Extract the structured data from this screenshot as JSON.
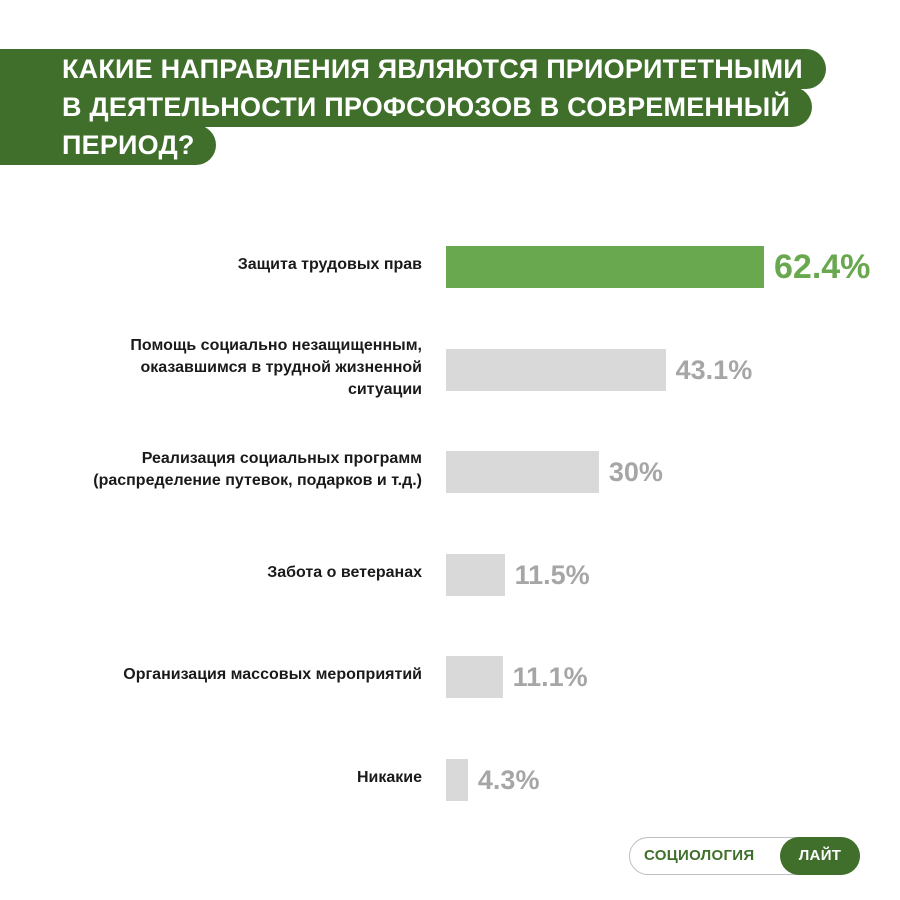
{
  "title": {
    "lines": [
      "КАКИЕ НАПРАВЛЕНИЯ ЯВЛЯЮТСЯ ПРИОРИТЕТНЫМИ",
      "В ДЕЯТЕЛЬНОСТИ ПРОФСОЮЗОВ В СОВРЕМЕННЫЙ",
      "ПЕРИОД?"
    ]
  },
  "chart_data": {
    "type": "bar",
    "orientation": "horizontal",
    "categories": [
      "Защита трудовых прав",
      "Помощь социально незащищенным, оказавшимся в трудной жизненной ситуации",
      "Реализация социальных программ (распределение путевок, подарков и т.д.)",
      "Забота о ветеранах",
      "Организация массовых мероприятий",
      "Никакие"
    ],
    "values": [
      62.4,
      43.1,
      30,
      11.5,
      11.1,
      4.3
    ],
    "value_labels": [
      "62.4%",
      "43.1%",
      "30%",
      "11.5%",
      "11.1%",
      "4.3%"
    ],
    "highlight_index": 0,
    "colors": {
      "highlight": "#6aa84f",
      "default": "#d9d9d9",
      "label_default": "#a6a6a6"
    },
    "grid": false,
    "legend": "none"
  },
  "brand": {
    "left": "СОЦИОЛОГИЯ",
    "right": "ЛАЙТ",
    "color": "#3f6f2a"
  }
}
